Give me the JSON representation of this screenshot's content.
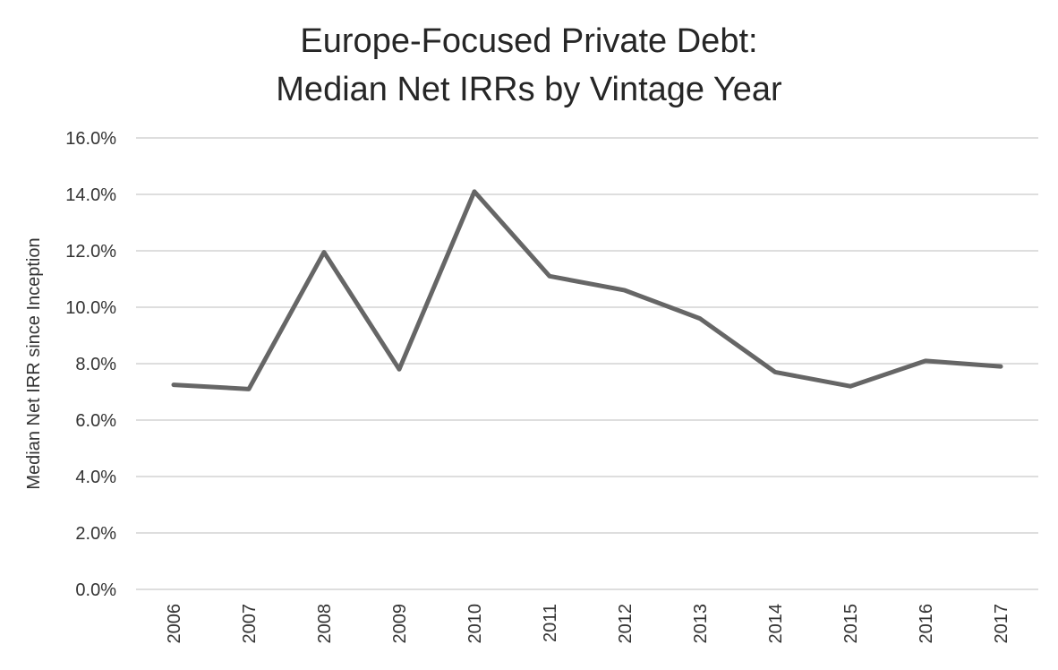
{
  "chart_data": {
    "type": "line",
    "title_lines": [
      "Europe-Focused Private Debt:",
      "Median Net IRRs by Vintage Year"
    ],
    "xlabel": "",
    "ylabel": "Median Net IRR since Inception",
    "categories": [
      "2006",
      "2007",
      "2008",
      "2009",
      "2010",
      "2011",
      "2012",
      "2013",
      "2014",
      "2015",
      "2016",
      "2017"
    ],
    "series": [
      {
        "values": [
          7.25,
          7.1,
          11.95,
          7.8,
          14.1,
          11.1,
          10.6,
          9.6,
          7.7,
          7.2,
          8.1,
          7.9
        ]
      }
    ],
    "ylim": [
      0,
      16
    ],
    "yticks": [
      0,
      2,
      4,
      6,
      8,
      10,
      12,
      14,
      16
    ],
    "ytick_labels": [
      "0.0%",
      "2.0%",
      "4.0%",
      "6.0%",
      "8.0%",
      "10.0%",
      "12.0%",
      "14.0%",
      "16.0%"
    ],
    "grid": true,
    "legend": "none",
    "colors": {
      "line": "#666666",
      "grid": "#d4d4d4",
      "text": "#333333"
    }
  }
}
